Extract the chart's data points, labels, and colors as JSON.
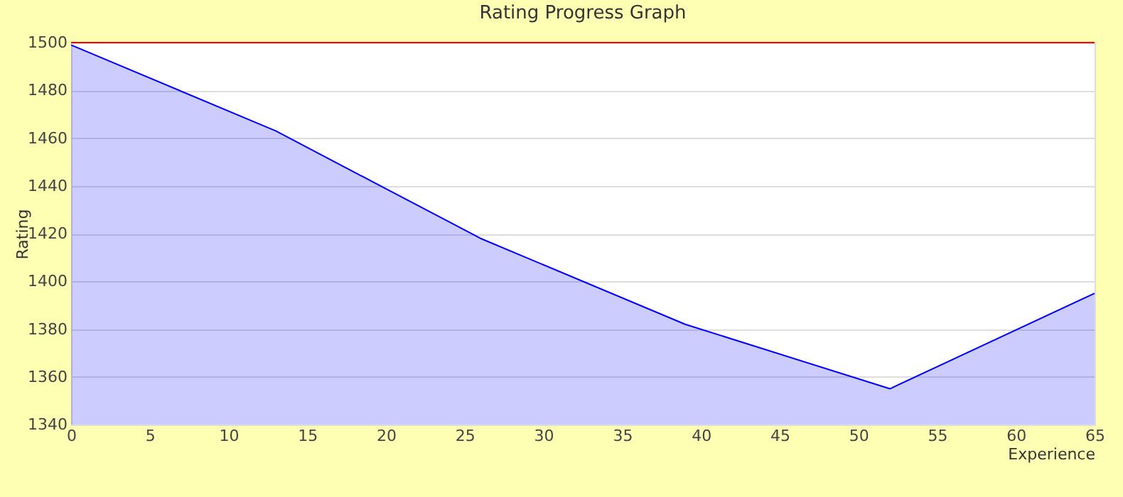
{
  "chart_data": {
    "type": "area",
    "title": "Rating Progress Graph",
    "xlabel": "Experience",
    "ylabel": "Rating",
    "x": [
      0,
      13,
      26,
      39,
      52,
      65
    ],
    "series": [
      {
        "color": "#0000ff",
        "values": [
          1499,
          1463,
          1418,
          1382,
          1355,
          1395
        ]
      }
    ],
    "xlim": [
      0,
      65
    ],
    "xticks": [
      0,
      5,
      10,
      15,
      20,
      25,
      30,
      35,
      40,
      45,
      50,
      55,
      60,
      65
    ],
    "ylim": [
      1340,
      1500
    ],
    "yticks": [
      1340,
      1360,
      1380,
      1400,
      1420,
      1440,
      1460,
      1480,
      1500
    ],
    "ref_lines": [
      {
        "axis": "y",
        "value": 1500,
        "color": "#ff0000"
      }
    ],
    "grid": "y",
    "legend": false
  }
}
